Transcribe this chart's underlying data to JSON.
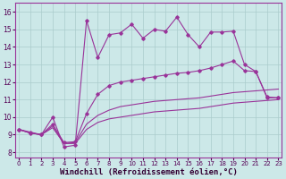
{
  "bg_color": "#cce8e8",
  "grid_color": "#aacccc",
  "line_color": "#993399",
  "xlabel": "Windchill (Refroidissement éolien,°C)",
  "xlabel_fontsize": 6.5,
  "yticks": [
    8,
    9,
    10,
    11,
    12,
    13,
    14,
    15,
    16
  ],
  "xticks": [
    0,
    1,
    2,
    3,
    4,
    5,
    6,
    7,
    8,
    9,
    10,
    11,
    12,
    13,
    14,
    15,
    16,
    17,
    18,
    19,
    20,
    21,
    22,
    23
  ],
  "xlim": [
    -0.3,
    23.3
  ],
  "ylim": [
    7.7,
    16.5
  ],
  "s1_x": [
    0,
    1,
    2,
    3,
    4,
    5,
    6,
    7,
    8,
    9,
    10,
    11,
    12,
    13,
    14,
    15,
    16,
    17,
    18,
    19,
    20,
    21,
    22,
    23
  ],
  "s1_y": [
    9.3,
    9.1,
    9.0,
    10.0,
    8.3,
    8.4,
    15.5,
    13.4,
    14.7,
    14.8,
    15.3,
    14.5,
    15.0,
    14.9,
    15.7,
    14.7,
    14.0,
    14.85,
    14.85,
    14.9,
    13.0,
    12.6,
    11.1,
    11.1
  ],
  "s2_x": [
    0,
    1,
    2,
    3,
    4,
    5,
    6,
    7,
    8,
    9,
    10,
    11,
    12,
    13,
    14,
    15,
    16,
    17,
    18,
    19,
    20,
    21,
    22,
    23
  ],
  "s2_y": [
    9.3,
    9.15,
    9.0,
    9.6,
    8.55,
    8.6,
    10.2,
    11.3,
    11.8,
    12.0,
    12.1,
    12.2,
    12.3,
    12.4,
    12.5,
    12.55,
    12.65,
    12.8,
    13.0,
    13.2,
    12.65,
    12.6,
    11.15,
    11.1
  ],
  "s3_x": [
    0,
    1,
    2,
    3,
    4,
    5,
    6,
    7,
    8,
    9,
    10,
    11,
    12,
    13,
    14,
    15,
    16,
    17,
    18,
    19,
    20,
    21,
    22,
    23
  ],
  "s3_y": [
    9.3,
    9.1,
    9.0,
    9.5,
    8.5,
    8.55,
    9.6,
    10.1,
    10.4,
    10.6,
    10.7,
    10.8,
    10.9,
    10.95,
    11.0,
    11.05,
    11.1,
    11.2,
    11.3,
    11.4,
    11.45,
    11.5,
    11.55,
    11.6
  ],
  "s4_x": [
    0,
    1,
    2,
    3,
    4,
    5,
    6,
    7,
    8,
    9,
    10,
    11,
    12,
    13,
    14,
    15,
    16,
    17,
    18,
    19,
    20,
    21,
    22,
    23
  ],
  "s4_y": [
    9.3,
    9.1,
    9.0,
    9.4,
    8.5,
    8.5,
    9.3,
    9.7,
    9.9,
    10.0,
    10.1,
    10.2,
    10.3,
    10.35,
    10.4,
    10.45,
    10.5,
    10.6,
    10.7,
    10.8,
    10.85,
    10.9,
    10.95,
    11.0
  ]
}
